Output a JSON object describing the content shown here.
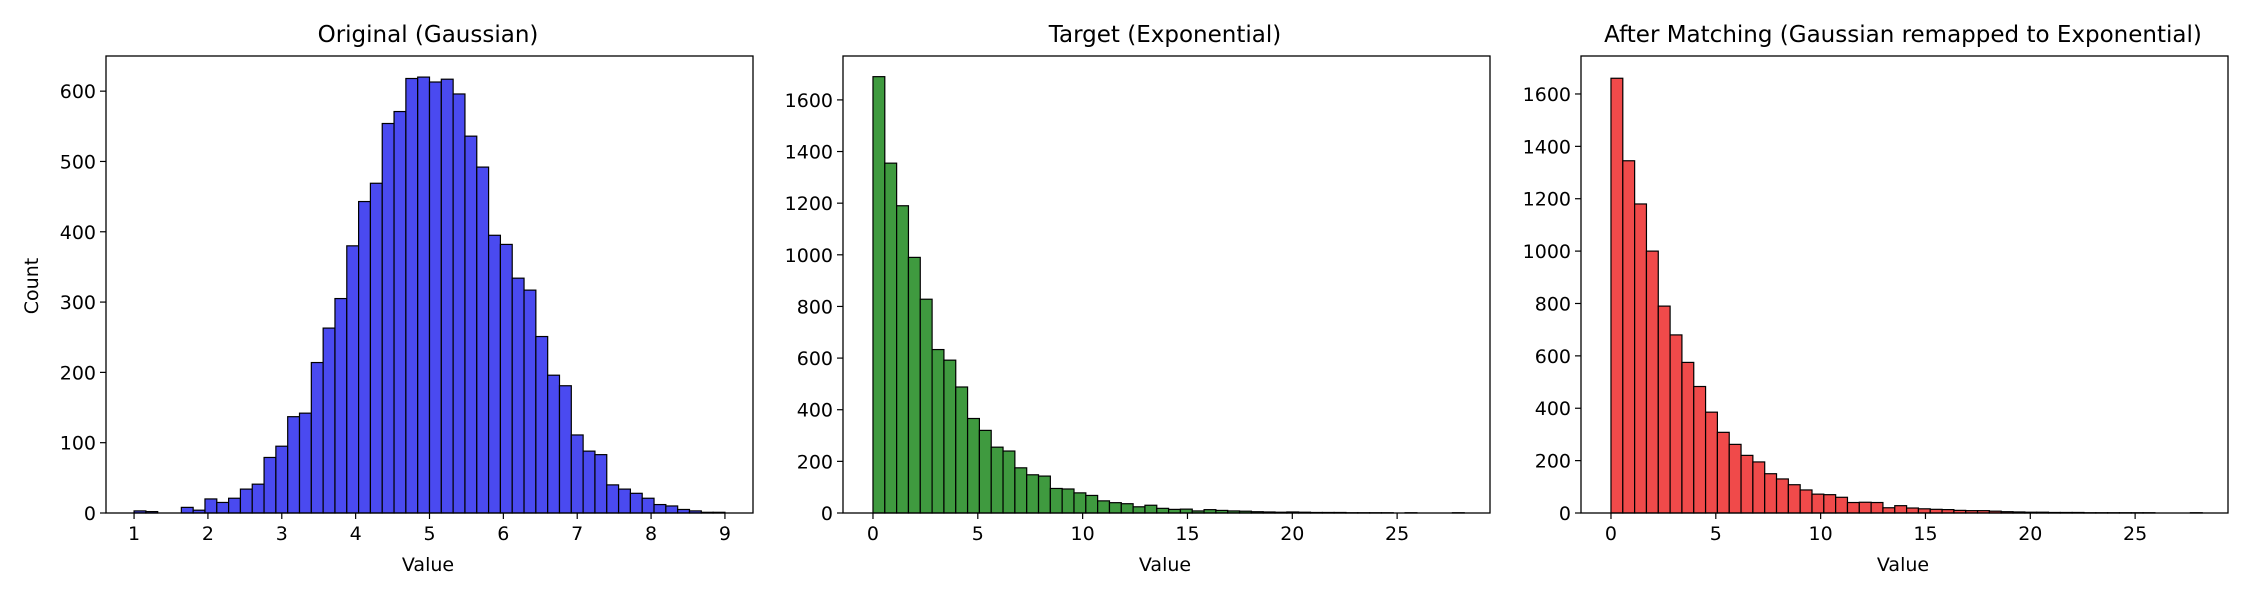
{
  "chart_data": [
    {
      "type": "bar",
      "title": "Original (Gaussian)",
      "xlabel": "Value",
      "ylabel": "Count",
      "color": "#4a4af0",
      "edge_color": "#000000",
      "xlim": [
        0.62,
        9.38
      ],
      "ylim": [
        0,
        650
      ],
      "xticks": [
        1,
        2,
        3,
        4,
        5,
        6,
        7,
        8,
        9
      ],
      "yticks": [
        0,
        100,
        200,
        300,
        400,
        500,
        600
      ],
      "bins": {
        "start": 1.0,
        "width": 0.16,
        "count": 50
      },
      "values": [
        3,
        2,
        0,
        0,
        8,
        4,
        20,
        15,
        21,
        34,
        41,
        79,
        95,
        137,
        142,
        214,
        263,
        305,
        380,
        443,
        469,
        554,
        571,
        618,
        620,
        613,
        617,
        596,
        536,
        492,
        395,
        382,
        334,
        317,
        251,
        196,
        181,
        111,
        88,
        83,
        40,
        34,
        28,
        21,
        12,
        10,
        5,
        3,
        1,
        1
      ]
    },
    {
      "type": "bar",
      "title": "Target (Exponential)",
      "xlabel": "Value",
      "ylabel": "",
      "color": "#3f9a3f",
      "edge_color": "#000000",
      "xlim": [
        -1.43,
        29.43
      ],
      "ylim": [
        0,
        1770
      ],
      "xticks": [
        0,
        5,
        10,
        15,
        20,
        25
      ],
      "yticks": [
        0,
        200,
        400,
        600,
        800,
        1000,
        1200,
        1400,
        1600
      ],
      "bins": {
        "start": 0.0,
        "width": 0.564,
        "count": 50
      },
      "values": [
        1690,
        1355,
        1190,
        990,
        828,
        633,
        592,
        488,
        366,
        320,
        255,
        240,
        175,
        148,
        143,
        95,
        93,
        78,
        68,
        47,
        40,
        36,
        24,
        30,
        18,
        14,
        15,
        8,
        13,
        10,
        8,
        7,
        5,
        4,
        3,
        4,
        3,
        2,
        2,
        2,
        1,
        1,
        1,
        1,
        0,
        1,
        0,
        0,
        0,
        1
      ]
    },
    {
      "type": "bar",
      "title": "After Matching (Gaussian remapped to Exponential)",
      "xlabel": "Value",
      "ylabel": "",
      "color": "#f04a4a",
      "edge_color": "#000000",
      "xlim": [
        -1.43,
        29.43
      ],
      "ylim": [
        0,
        1745
      ],
      "xticks": [
        0,
        5,
        10,
        15,
        20,
        25
      ],
      "yticks": [
        0,
        200,
        400,
        600,
        800,
        1000,
        1200,
        1400,
        1600
      ],
      "bins": {
        "start": 0.0,
        "width": 0.564,
        "count": 50
      },
      "values": [
        1660,
        1345,
        1180,
        1000,
        790,
        680,
        575,
        483,
        385,
        308,
        262,
        220,
        195,
        150,
        130,
        108,
        88,
        72,
        70,
        60,
        40,
        41,
        40,
        20,
        28,
        19,
        16,
        14,
        13,
        10,
        9,
        9,
        7,
        5,
        4,
        3,
        3,
        2,
        2,
        2,
        1,
        1,
        1,
        1,
        1,
        1,
        0,
        0,
        0,
        1
      ]
    }
  ]
}
